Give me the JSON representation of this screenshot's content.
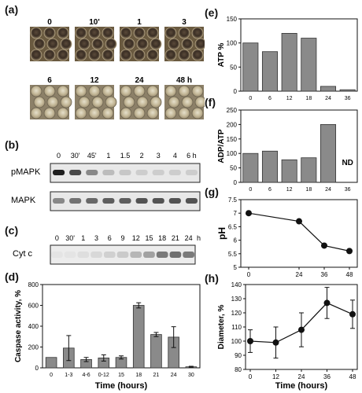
{
  "figure": {
    "panel_a": {
      "label": "(a)",
      "time_labels": [
        "0",
        "10'",
        "1",
        "3",
        "6",
        "12",
        "24",
        "48 h"
      ]
    },
    "panel_b": {
      "label": "(b)",
      "lanes": [
        "0",
        "30'",
        "45'",
        "1",
        "1.5",
        "2",
        "3",
        "4",
        "6 h"
      ],
      "rows": [
        "pMAPK",
        "MAPK"
      ],
      "pmapk_intensity": [
        0.95,
        0.75,
        0.45,
        0.2,
        0.15,
        0.12,
        0.12,
        0.12,
        0.12
      ],
      "mapk_intensity": [
        0.45,
        0.55,
        0.6,
        0.65,
        0.65,
        0.7,
        0.7,
        0.7,
        0.7
      ]
    },
    "panel_c": {
      "label": "(c)",
      "lanes": [
        "0",
        "30'",
        "1",
        "3",
        "6",
        "9",
        "12",
        "15",
        "18",
        "21",
        "24"
      ],
      "unit": "h",
      "row": "Cyt c",
      "intensity": [
        0.02,
        0.02,
        0.05,
        0.08,
        0.12,
        0.15,
        0.25,
        0.35,
        0.55,
        0.6,
        0.55
      ]
    }
  },
  "chart_data": [
    {
      "panel": "(d)",
      "type": "bar",
      "categories": [
        "0",
        "1-3",
        "4-6",
        "0-12",
        "15",
        "18",
        "21",
        "24",
        "30"
      ],
      "values": [
        100,
        190,
        80,
        95,
        100,
        600,
        320,
        295,
        10
      ],
      "errors": [
        0,
        120,
        20,
        30,
        15,
        25,
        20,
        100,
        5
      ],
      "xlabel": "Time (hours)",
      "ylabel": "Caspase activity, %",
      "ylim": [
        0,
        800
      ],
      "yticks": [
        "0",
        "200",
        "400",
        "600",
        "800"
      ]
    },
    {
      "panel": "(e)",
      "type": "bar",
      "categories": [
        "0",
        "6",
        "12",
        "18",
        "24",
        "36"
      ],
      "values": [
        100,
        82,
        120,
        110,
        10,
        3
      ],
      "ylabel": "ATP %",
      "ylim": [
        0,
        150
      ],
      "yticks": [
        "0",
        "50",
        "100",
        "150"
      ]
    },
    {
      "panel": "(f)",
      "type": "bar",
      "categories": [
        "0",
        "6",
        "12",
        "18",
        "24",
        "36"
      ],
      "values": [
        100,
        108,
        78,
        85,
        200,
        null
      ],
      "ylabel": "ADP/ATP",
      "ylim": [
        0,
        250
      ],
      "yticks": [
        "0",
        "50",
        "100",
        "150",
        "200",
        "250"
      ],
      "annotation": "ND"
    },
    {
      "panel": "(g)",
      "type": "line",
      "x": [
        0,
        24,
        36,
        48
      ],
      "xticks": [
        "0",
        "24",
        "36",
        "48"
      ],
      "values": [
        7.0,
        6.7,
        5.8,
        5.6
      ],
      "ylabel": "pH",
      "ylim": [
        5.0,
        7.5
      ],
      "yticks": [
        "5",
        "5.5",
        "6",
        "6.5",
        "7",
        "7.5"
      ]
    },
    {
      "panel": "(h)",
      "type": "line",
      "x": [
        0,
        12,
        24,
        36,
        48
      ],
      "xticks": [
        "0",
        "12",
        "24",
        "36",
        "48"
      ],
      "values": [
        100,
        99,
        108,
        127,
        119
      ],
      "errors": [
        8,
        11,
        12,
        11,
        10
      ],
      "xlabel": "Time (hours)",
      "ylabel": "Diameter, %",
      "ylim": [
        80,
        140
      ],
      "yticks": [
        "80",
        "90",
        "100",
        "110",
        "120",
        "130",
        "140"
      ]
    }
  ]
}
